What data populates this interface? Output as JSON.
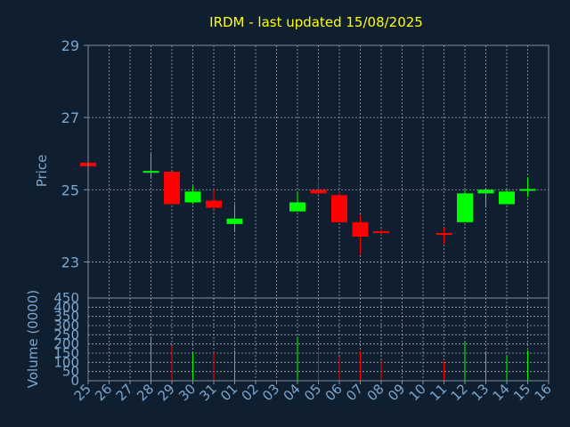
{
  "chart_data": {
    "type": "candlestick",
    "title": "IRDM - last updated 15/08/2025",
    "xlabel": "Day",
    "price_panel": {
      "ylabel": "Price",
      "ylim": [
        22,
        29
      ],
      "yticks": [
        23,
        25,
        27,
        29
      ],
      "grid": true
    },
    "volume_panel": {
      "ylabel": "Volume (0000)",
      "ylim": [
        0,
        450
      ],
      "yticks": [
        0,
        50,
        100,
        150,
        200,
        250,
        300,
        350,
        400,
        450
      ],
      "grid": true
    },
    "days": [
      "25",
      "26",
      "27",
      "28",
      "29",
      "30",
      "31",
      "01",
      "02",
      "03",
      "04",
      "05",
      "06",
      "07",
      "08",
      "09",
      "10",
      "11",
      "12",
      "13",
      "14",
      "15",
      "16"
    ],
    "candles": [
      {
        "day": "25",
        "open": 25.75,
        "high": 25.8,
        "low": 25.65,
        "close": 25.65,
        "volume": 0
      },
      {
        "day": "28",
        "open": 25.5,
        "high": 26.0,
        "low": 25.3,
        "close": 25.52,
        "volume": 240
      },
      {
        "day": "29",
        "open": 25.5,
        "high": 25.5,
        "low": 24.6,
        "close": 24.6,
        "volume": 190
      },
      {
        "day": "30",
        "open": 24.65,
        "high": 25.1,
        "low": 24.6,
        "close": 24.95,
        "volume": 150
      },
      {
        "day": "31",
        "open": 24.7,
        "high": 25.05,
        "low": 24.45,
        "close": 24.5,
        "volume": 155
      },
      {
        "day": "01",
        "open": 24.05,
        "high": 24.6,
        "low": 23.85,
        "close": 24.2,
        "volume": 165
      },
      {
        "day": "04",
        "open": 24.4,
        "high": 24.95,
        "low": 24.4,
        "close": 24.65,
        "volume": 240
      },
      {
        "day": "05",
        "open": 25.0,
        "high": 25.3,
        "low": 24.85,
        "close": 24.9,
        "volume": 160
      },
      {
        "day": "06",
        "open": 24.85,
        "high": 24.95,
        "low": 24.1,
        "close": 24.1,
        "volume": 130
      },
      {
        "day": "07",
        "open": 24.1,
        "high": 24.3,
        "low": 23.2,
        "close": 23.7,
        "volume": 160
      },
      {
        "day": "08",
        "open": 23.85,
        "high": 23.9,
        "low": 23.75,
        "close": 23.8,
        "volume": 110
      },
      {
        "day": "11",
        "open": 23.8,
        "high": 23.95,
        "low": 23.5,
        "close": 23.75,
        "volume": 105
      },
      {
        "day": "12",
        "open": 24.1,
        "high": 25.0,
        "low": 24.1,
        "close": 24.9,
        "volume": 215
      },
      {
        "day": "13",
        "open": 24.9,
        "high": 25.05,
        "low": 24.5,
        "close": 25.0,
        "volume": 160
      },
      {
        "day": "14",
        "open": 24.6,
        "high": 25.0,
        "low": 24.6,
        "close": 24.95,
        "volume": 140
      },
      {
        "day": "15",
        "open": 25.0,
        "high": 25.35,
        "low": 24.8,
        "close": 25.02,
        "volume": 165
      }
    ],
    "colors": {
      "background": "#0f1f30",
      "title": "#ffff00",
      "axis_text": "#7aa6cf",
      "frame": "#7f8fa0",
      "grid": "#a0a8b0",
      "up": "#00ff00",
      "down": "#ff0000"
    }
  }
}
